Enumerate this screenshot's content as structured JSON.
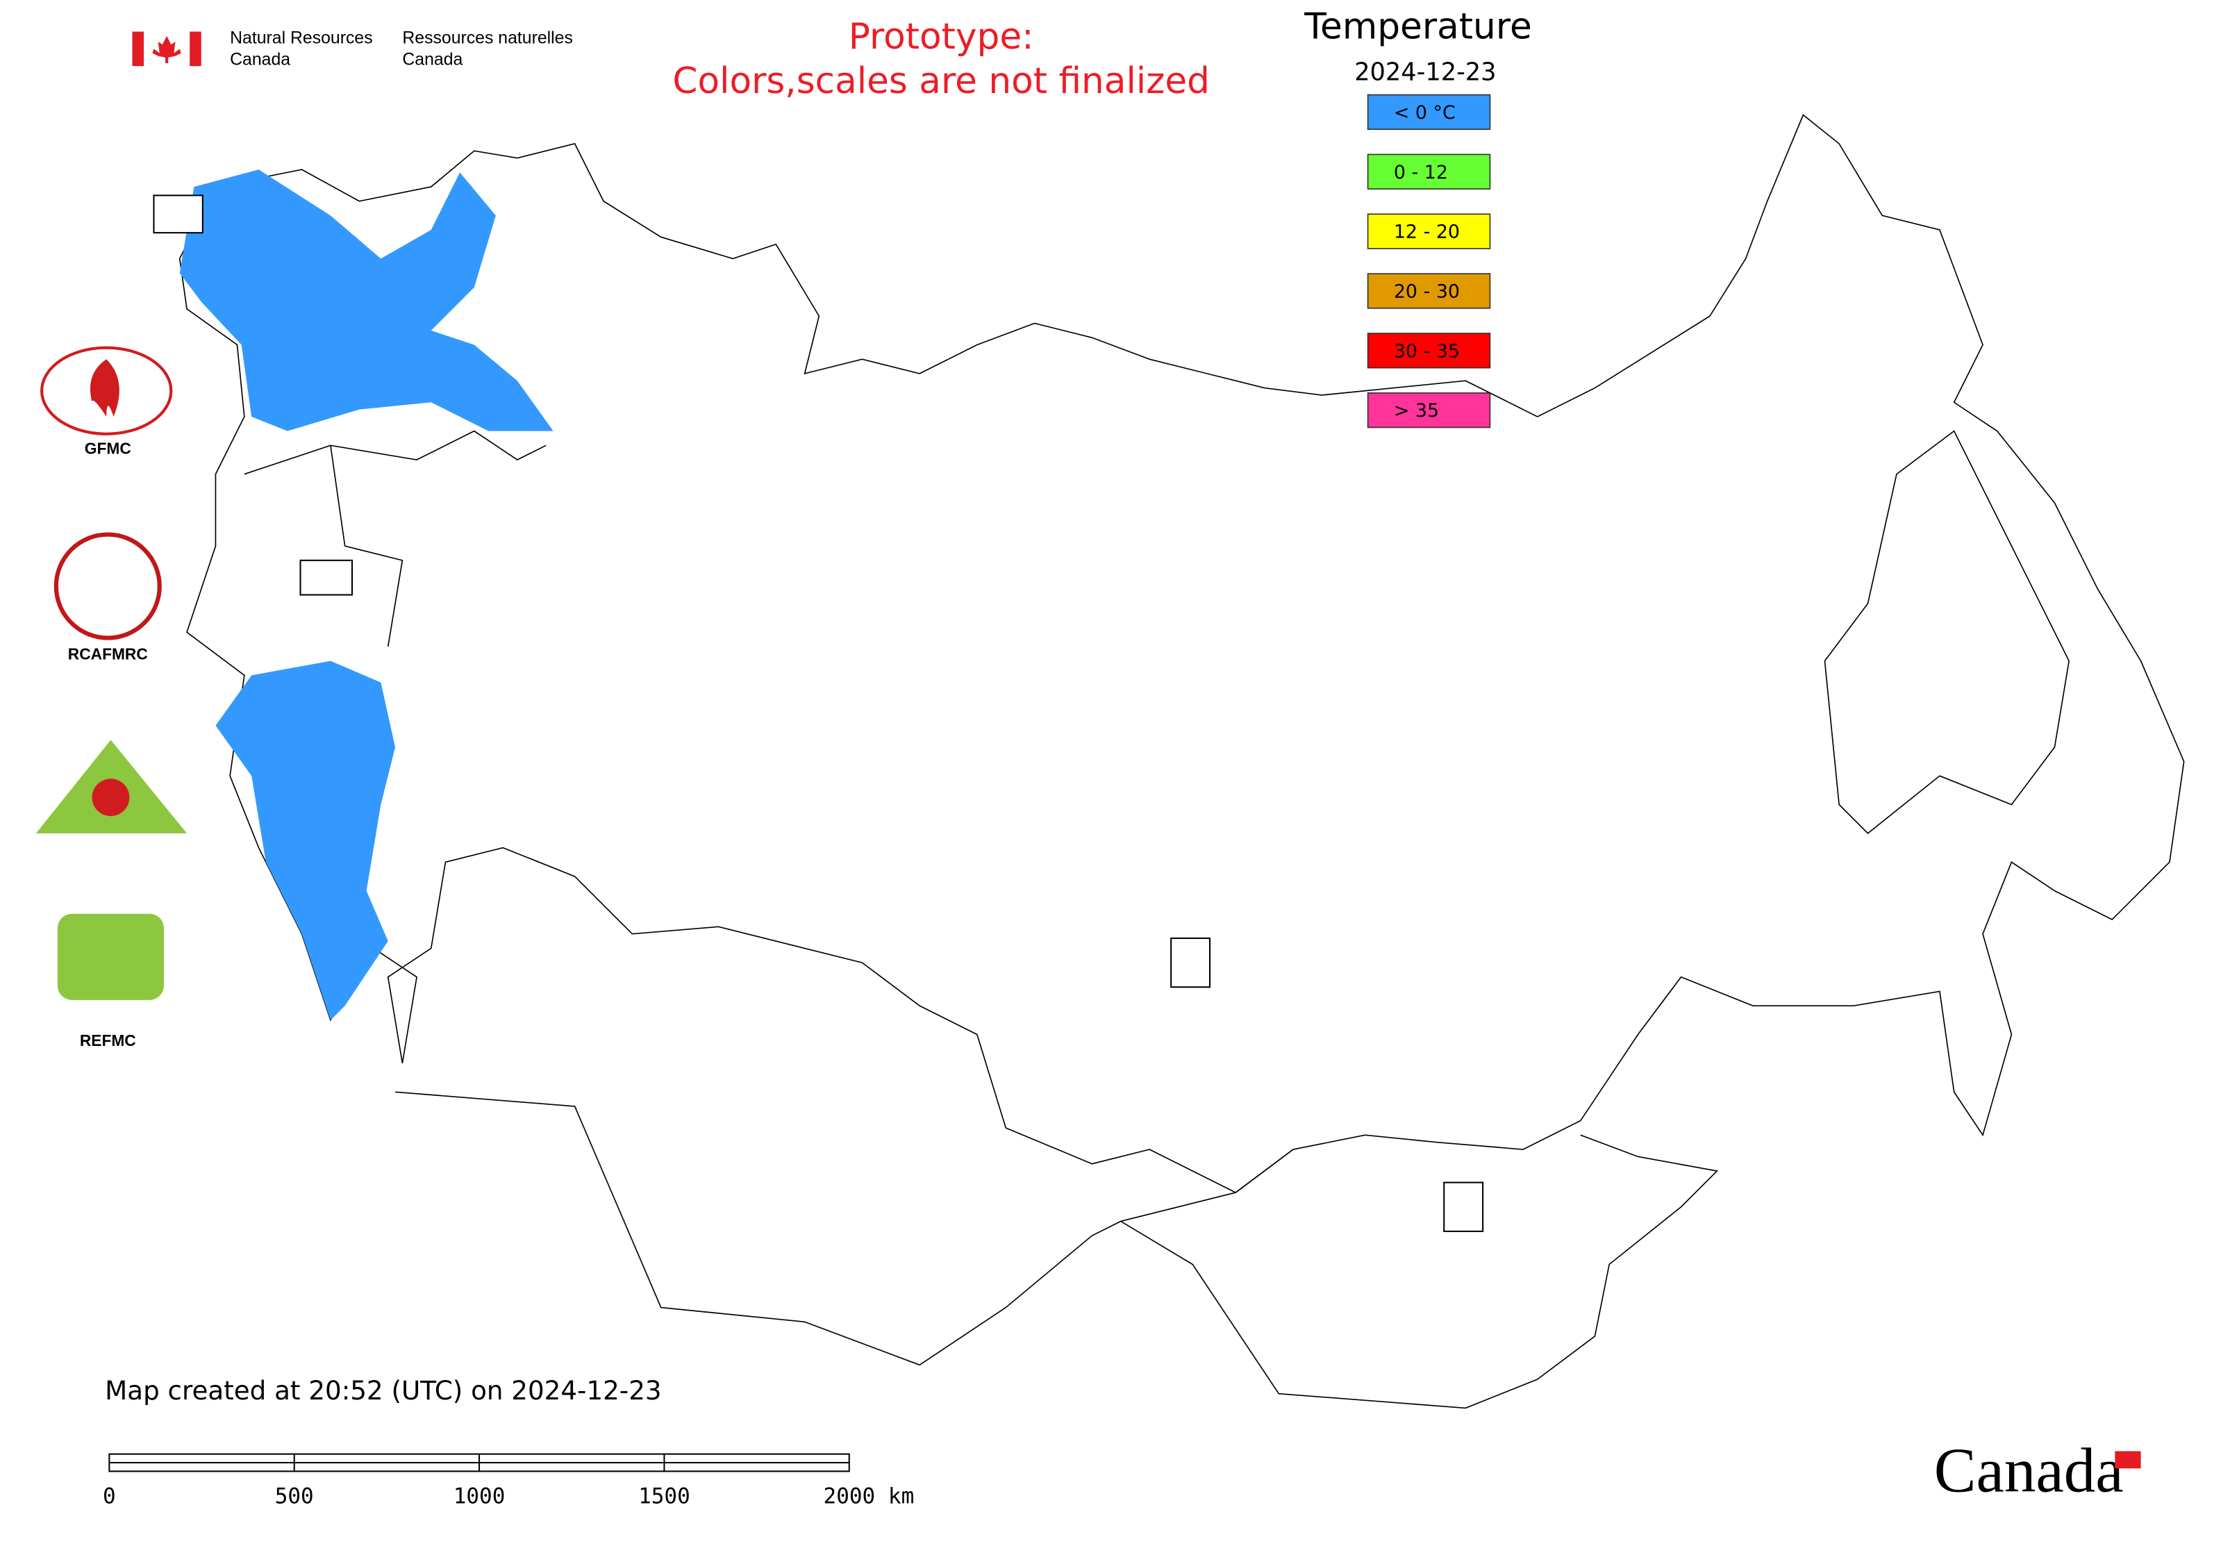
{
  "header": {
    "agency_en_line1": "Natural Resources",
    "agency_en_line2": "Canada",
    "agency_fr_line1": "Ressources naturelles",
    "agency_fr_line2": "Canada",
    "notice_line1": "Prototype:",
    "notice_line2": "Colors,scales are not finalized"
  },
  "legend": {
    "title": "Temperature",
    "date": "2024-12-23",
    "items": [
      {
        "label": "< 0 °C",
        "color": "#3399ff"
      },
      {
        "label": "0 - 12",
        "color": "#66ff33"
      },
      {
        "label": "12 - 20",
        "color": "#ffff00"
      },
      {
        "label": "20 - 30",
        "color": "#e09a00"
      },
      {
        "label": "30 - 35",
        "color": "#ff0000"
      },
      {
        "label": "> 35",
        "color": "#ff3399"
      }
    ]
  },
  "logos": [
    "GFMC",
    "RCAFMRC",
    "REFMC"
  ],
  "footer": {
    "created": "Map created at 20:52 (UTC) on 2024-12-23",
    "scale_labels": [
      "0",
      "500",
      "1000",
      "1500",
      "2000 km"
    ],
    "wordmark": "Canada"
  }
}
